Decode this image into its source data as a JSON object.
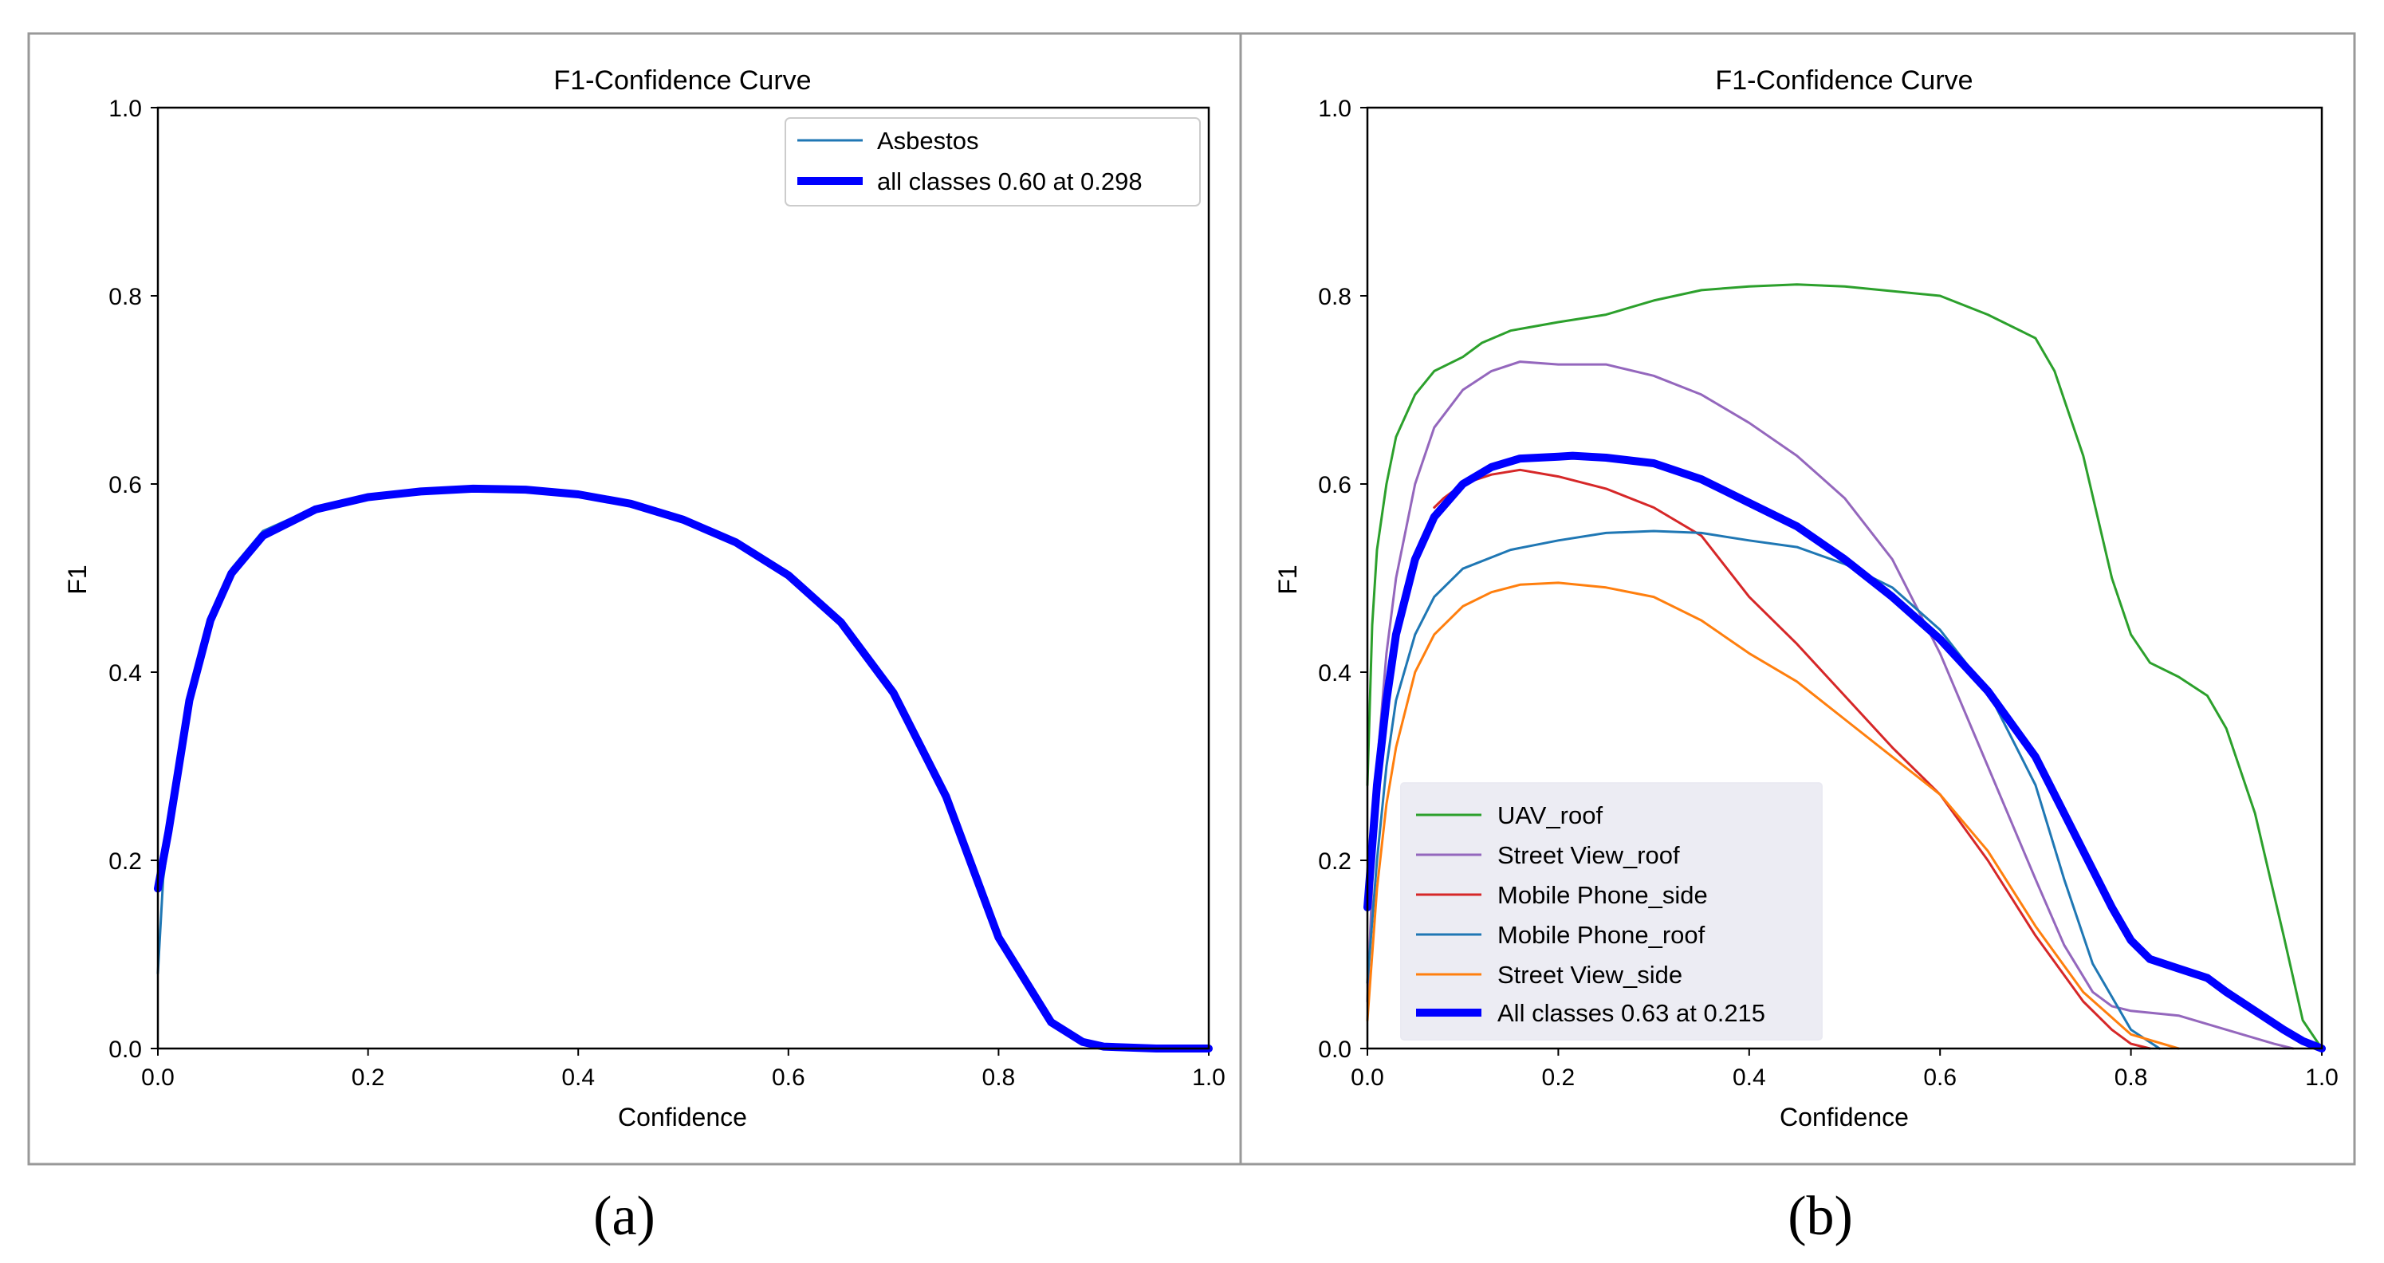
{
  "colors": {
    "frame": "#999999",
    "axis": "#000000",
    "legend_bg_a": "#ffffff",
    "legend_bg_b": "#eaeaf2",
    "legend_border": "#cccccc"
  },
  "chart_data": [
    {
      "panel": "a",
      "caption": "(a)",
      "type": "line",
      "title": "F1-Confidence Curve",
      "xlabel": "Confidence",
      "ylabel": "F1",
      "xlim": [
        0,
        1
      ],
      "ylim": [
        0,
        1
      ],
      "xticks": [
        "0.0",
        "0.2",
        "0.4",
        "0.6",
        "0.8",
        "1.0"
      ],
      "yticks": [
        "0.0",
        "0.2",
        "0.4",
        "0.6",
        "0.8",
        "1.0"
      ],
      "legend_position": "upper right",
      "legend_bg": "#ffffff",
      "series": [
        {
          "name": "Asbestos",
          "color": "#1f77b4",
          "width": 3,
          "x": [
            0,
            0.005,
            0.01,
            0.02,
            0.03,
            0.05,
            0.07,
            0.1,
            0.15,
            0.2,
            0.25,
            0.3,
            0.35,
            0.4,
            0.45,
            0.5,
            0.55,
            0.6,
            0.65,
            0.7,
            0.75,
            0.8,
            0.85,
            0.88,
            0.9,
            0.95,
            1.0
          ],
          "y": [
            0.08,
            0.18,
            0.22,
            0.3,
            0.38,
            0.46,
            0.51,
            0.55,
            0.575,
            0.587,
            0.593,
            0.596,
            0.595,
            0.59,
            0.58,
            0.563,
            0.54,
            0.505,
            0.455,
            0.38,
            0.27,
            0.12,
            0.03,
            0.008,
            0.002,
            0.0,
            0.0
          ]
        },
        {
          "name": "all classes 0.60 at 0.298",
          "color": "#0000ff",
          "width": 10,
          "x": [
            0,
            0.005,
            0.01,
            0.02,
            0.03,
            0.05,
            0.07,
            0.1,
            0.15,
            0.2,
            0.25,
            0.3,
            0.35,
            0.4,
            0.45,
            0.5,
            0.55,
            0.6,
            0.65,
            0.7,
            0.75,
            0.8,
            0.85,
            0.88,
            0.9,
            0.95,
            1.0
          ],
          "y": [
            0.17,
            0.2,
            0.23,
            0.3,
            0.37,
            0.455,
            0.505,
            0.545,
            0.573,
            0.586,
            0.592,
            0.595,
            0.594,
            0.589,
            0.579,
            0.562,
            0.538,
            0.503,
            0.453,
            0.378,
            0.268,
            0.118,
            0.028,
            0.007,
            0.002,
            0.0,
            0.0
          ]
        }
      ]
    },
    {
      "panel": "b",
      "caption": "(b)",
      "type": "line",
      "title": "F1-Confidence Curve",
      "xlabel": "Confidence",
      "ylabel": "F1",
      "xlim": [
        0,
        1
      ],
      "ylim": [
        0,
        1
      ],
      "xticks": [
        "0.0",
        "0.2",
        "0.4",
        "0.6",
        "0.8",
        "1.0"
      ],
      "yticks": [
        "0.0",
        "0.2",
        "0.4",
        "0.6",
        "0.8",
        "1.0"
      ],
      "legend_position": "lower left",
      "legend_bg": "#eaeaf2",
      "series": [
        {
          "name": "UAV_roof",
          "color": "#2ca02c",
          "width": 3,
          "x": [
            0,
            0.005,
            0.01,
            0.02,
            0.03,
            0.05,
            0.07,
            0.1,
            0.12,
            0.15,
            0.2,
            0.25,
            0.3,
            0.35,
            0.4,
            0.45,
            0.5,
            0.55,
            0.6,
            0.65,
            0.7,
            0.72,
            0.75,
            0.78,
            0.8,
            0.82,
            0.85,
            0.88,
            0.9,
            0.93,
            0.96,
            0.98,
            1.0
          ],
          "y": [
            0.28,
            0.45,
            0.53,
            0.6,
            0.65,
            0.695,
            0.72,
            0.735,
            0.75,
            0.763,
            0.772,
            0.78,
            0.795,
            0.806,
            0.81,
            0.812,
            0.81,
            0.805,
            0.8,
            0.78,
            0.755,
            0.72,
            0.63,
            0.5,
            0.44,
            0.41,
            0.395,
            0.375,
            0.34,
            0.25,
            0.12,
            0.03,
            0.0
          ]
        },
        {
          "name": "Street View_roof",
          "color": "#9467bd",
          "width": 3,
          "x": [
            0,
            0.01,
            0.02,
            0.03,
            0.05,
            0.07,
            0.1,
            0.13,
            0.16,
            0.2,
            0.25,
            0.3,
            0.35,
            0.4,
            0.45,
            0.5,
            0.55,
            0.6,
            0.65,
            0.7,
            0.73,
            0.76,
            0.78,
            0.8,
            0.85,
            0.9,
            0.95,
            0.97
          ],
          "y": [
            0.05,
            0.3,
            0.42,
            0.5,
            0.6,
            0.66,
            0.7,
            0.72,
            0.73,
            0.727,
            0.727,
            0.715,
            0.695,
            0.665,
            0.63,
            0.585,
            0.52,
            0.42,
            0.3,
            0.18,
            0.11,
            0.06,
            0.045,
            0.04,
            0.035,
            0.02,
            0.005,
            0.0
          ]
        },
        {
          "name": "Mobile Phone_side",
          "color": "#d62728",
          "width": 3,
          "x": [
            0.07,
            0.08,
            0.1,
            0.13,
            0.16,
            0.2,
            0.25,
            0.3,
            0.35,
            0.4,
            0.45,
            0.5,
            0.55,
            0.6,
            0.65,
            0.7,
            0.75,
            0.78,
            0.8,
            0.82
          ],
          "y": [
            0.575,
            0.585,
            0.6,
            0.61,
            0.615,
            0.608,
            0.595,
            0.575,
            0.545,
            0.48,
            0.43,
            0.375,
            0.32,
            0.27,
            0.2,
            0.12,
            0.05,
            0.02,
            0.005,
            0.0
          ]
        },
        {
          "name": "Mobile Phone_roof",
          "color": "#1f77b4",
          "width": 3,
          "x": [
            0,
            0.01,
            0.02,
            0.03,
            0.05,
            0.07,
            0.1,
            0.15,
            0.2,
            0.25,
            0.3,
            0.35,
            0.4,
            0.45,
            0.5,
            0.55,
            0.6,
            0.65,
            0.7,
            0.73,
            0.76,
            0.8,
            0.83
          ],
          "y": [
            0.07,
            0.2,
            0.3,
            0.37,
            0.44,
            0.48,
            0.51,
            0.53,
            0.54,
            0.548,
            0.55,
            0.548,
            0.54,
            0.533,
            0.515,
            0.49,
            0.445,
            0.38,
            0.28,
            0.18,
            0.09,
            0.02,
            0.0
          ]
        },
        {
          "name": "Street View_side",
          "color": "#ff7f0e",
          "width": 3,
          "x": [
            0,
            0.01,
            0.02,
            0.03,
            0.05,
            0.07,
            0.1,
            0.13,
            0.16,
            0.2,
            0.25,
            0.3,
            0.35,
            0.4,
            0.45,
            0.5,
            0.55,
            0.6,
            0.65,
            0.7,
            0.75,
            0.8,
            0.85
          ],
          "y": [
            0.03,
            0.17,
            0.26,
            0.32,
            0.4,
            0.44,
            0.47,
            0.485,
            0.493,
            0.495,
            0.49,
            0.48,
            0.455,
            0.42,
            0.39,
            0.35,
            0.31,
            0.27,
            0.21,
            0.13,
            0.06,
            0.015,
            0.0
          ]
        },
        {
          "name": "All classes 0.63 at 0.215",
          "color": "#0000ff",
          "width": 10,
          "x": [
            0,
            0.01,
            0.02,
            0.03,
            0.05,
            0.07,
            0.1,
            0.13,
            0.16,
            0.2,
            0.215,
            0.25,
            0.3,
            0.35,
            0.4,
            0.45,
            0.5,
            0.55,
            0.6,
            0.65,
            0.7,
            0.73,
            0.76,
            0.78,
            0.8,
            0.82,
            0.85,
            0.88,
            0.9,
            0.93,
            0.96,
            0.98,
            1.0
          ],
          "y": [
            0.15,
            0.28,
            0.37,
            0.44,
            0.52,
            0.565,
            0.6,
            0.618,
            0.627,
            0.629,
            0.63,
            0.628,
            0.622,
            0.605,
            0.58,
            0.555,
            0.52,
            0.48,
            0.435,
            0.38,
            0.31,
            0.25,
            0.19,
            0.15,
            0.115,
            0.095,
            0.085,
            0.075,
            0.06,
            0.04,
            0.02,
            0.008,
            0.0
          ]
        }
      ]
    }
  ]
}
